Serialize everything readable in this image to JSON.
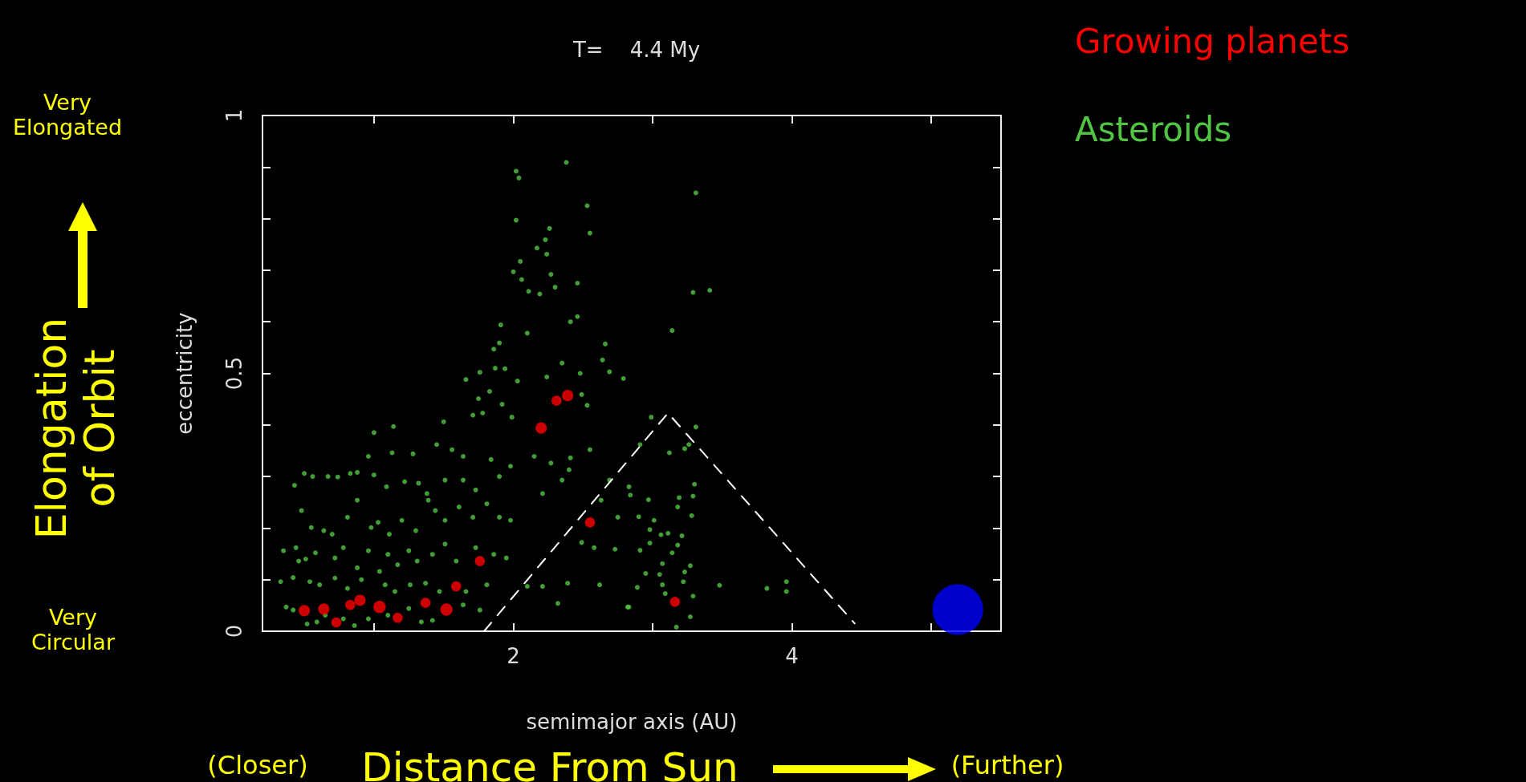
{
  "chart_data": {
    "type": "scatter",
    "title": "T=    4.4 My",
    "xlabel": "semimajor axis (AU)",
    "ylabel": "eccentricity",
    "xlim": [
      0.2,
      5.5
    ],
    "xticks": [
      {
        "value": 1,
        "label": null
      },
      2,
      {
        "value": 3,
        "label": null
      },
      4,
      {
        "value": 5,
        "label": null
      }
    ],
    "ylim": [
      0,
      1
    ],
    "yticks": [
      0,
      {
        "value": 0.1,
        "label": null
      },
      {
        "value": 0.2,
        "label": null
      },
      {
        "value": 0.3,
        "label": null
      },
      {
        "value": 0.4,
        "label": null
      },
      0.5,
      {
        "value": 0.6,
        "label": null
      },
      {
        "value": 0.7,
        "label": null
      },
      {
        "value": 0.8,
        "label": null
      },
      {
        "value": 0.9,
        "label": null
      },
      1
    ],
    "grid": false,
    "legend": "top right",
    "marker": "circle",
    "annotations": [
      "Very Elongated",
      "Very Circular",
      "Elongation of Orbit",
      "(Closer)",
      "Distance From Sun",
      "(Further)"
    ],
    "series": [
      {
        "type": "bubble",
        "name": "Growing planets",
        "color": "#ff0000",
        "x": [
          0.5,
          0.64,
          0.73,
          0.83,
          0.9,
          1.04,
          1.17,
          1.37,
          1.52,
          1.59,
          1.76,
          2.2,
          2.31,
          2.39,
          2.55,
          3.16
        ],
        "values": [
          0.04,
          0.043,
          0.017,
          0.051,
          0.06,
          0.047,
          0.026,
          0.055,
          0.042,
          0.087,
          0.136,
          0.394,
          0.447,
          0.457,
          0.211,
          0.057
        ],
        "sizes": [
          0.05,
          0.05,
          0.04,
          0.04,
          0.05,
          0.06,
          0.04,
          0.04,
          0.06,
          0.04,
          0.04,
          0.05,
          0.04,
          0.05,
          0.04,
          0.04
        ]
      },
      {
        "name": "Asteroids",
        "color": "#52c443",
        "x": [
          2.02,
          2.04,
          2.38,
          2.53,
          2.55,
          2.02,
          2.26,
          2.23,
          2.17,
          2.24,
          2.0,
          2.05,
          2.06,
          2.11,
          2.19,
          2.27,
          2.3,
          2.46,
          2.41,
          2.46,
          1.91,
          2.1,
          1.9,
          1.86,
          1.87,
          1.94,
          1.76,
          1.66,
          1.83,
          1.75,
          1.92,
          2.03,
          2.24,
          2.35,
          2.48,
          2.64,
          2.69,
          2.79,
          2.66,
          2.49,
          2.53,
          1.71,
          1.78,
          1.99,
          1.5,
          1.14,
          1.0,
          0.96,
          1.13,
          1.28,
          1.45,
          1.56,
          1.64,
          1.84,
          1.98,
          2.15,
          2.27,
          2.41,
          2.55,
          2.69,
          2.83,
          2.21,
          2.35,
          2.4,
          0.43,
          0.5,
          0.56,
          0.67,
          0.74,
          0.83,
          0.88,
          1.0,
          1.09,
          1.22,
          1.32,
          1.38,
          1.51,
          1.64,
          1.73,
          1.9,
          2.63,
          2.75,
          0.48,
          0.55,
          0.64,
          0.7,
          0.81,
          0.88,
          0.98,
          1.03,
          1.11,
          1.2,
          1.3,
          1.39,
          1.44,
          1.51,
          1.61,
          1.71,
          1.81,
          1.9,
          1.98,
          2.49,
          2.58,
          0.35,
          0.44,
          0.46,
          0.51,
          0.58,
          0.72,
          0.78,
          0.88,
          0.96,
          1.04,
          1.1,
          1.17,
          1.25,
          1.31,
          1.42,
          1.51,
          1.59,
          1.73,
          1.86,
          1.95,
          2.1,
          2.21,
          2.32,
          2.39,
          2.62,
          2.73,
          0.33,
          0.42,
          0.54,
          0.61,
          0.72,
          0.81,
          0.91,
          1.08,
          1.15,
          1.26,
          1.37,
          1.47,
          1.66,
          1.81,
          0.37,
          0.42,
          0.52,
          0.59,
          0.65,
          0.78,
          0.86,
          0.96,
          1.1,
          1.25,
          1.34,
          1.42,
          1.64,
          1.76,
          2.83,
          3.31,
          3.29,
          3.41,
          3.14,
          2.99,
          3.31,
          2.91,
          3.12,
          3.26,
          3.23,
          3.3,
          2.84,
          2.97,
          3.19,
          3.29,
          3.18,
          3.28,
          2.9,
          3.01,
          2.98,
          3.06,
          3.11,
          3.21,
          2.98,
          3.18,
          2.91,
          3.14,
          3.07,
          3.27,
          2.95,
          3.05,
          3.23,
          2.89,
          3.07,
          3.22,
          3.48,
          3.82,
          3.96,
          3.96,
          3.09,
          3.29,
          3.27,
          3.17,
          2.82
        ],
        "values": [
          0.892,
          0.879,
          0.909,
          0.825,
          0.772,
          0.797,
          0.781,
          0.759,
          0.743,
          0.731,
          0.697,
          0.717,
          0.682,
          0.659,
          0.654,
          0.692,
          0.667,
          0.675,
          0.6,
          0.61,
          0.594,
          0.578,
          0.559,
          0.547,
          0.51,
          0.509,
          0.502,
          0.488,
          0.465,
          0.451,
          0.44,
          0.485,
          0.493,
          0.52,
          0.5,
          0.526,
          0.503,
          0.49,
          0.557,
          0.459,
          0.438,
          0.419,
          0.423,
          0.415,
          0.406,
          0.397,
          0.385,
          0.339,
          0.346,
          0.344,
          0.362,
          0.352,
          0.339,
          0.333,
          0.32,
          0.339,
          0.326,
          0.336,
          0.352,
          0.293,
          0.28,
          0.267,
          0.293,
          0.313,
          0.283,
          0.306,
          0.3,
          0.3,
          0.299,
          0.306,
          0.308,
          0.303,
          0.28,
          0.29,
          0.287,
          0.267,
          0.293,
          0.293,
          0.274,
          0.3,
          0.254,
          0.221,
          0.234,
          0.201,
          0.195,
          0.188,
          0.221,
          0.254,
          0.201,
          0.211,
          0.188,
          0.215,
          0.195,
          0.254,
          0.234,
          0.215,
          0.241,
          0.221,
          0.247,
          0.221,
          0.215,
          0.172,
          0.162,
          0.156,
          0.162,
          0.136,
          0.14,
          0.152,
          0.142,
          0.162,
          0.123,
          0.156,
          0.116,
          0.149,
          0.129,
          0.156,
          0.136,
          0.149,
          0.169,
          0.136,
          0.162,
          0.149,
          0.142,
          0.087,
          0.087,
          0.054,
          0.093,
          0.09,
          0.159,
          0.096,
          0.104,
          0.096,
          0.09,
          0.103,
          0.083,
          0.1,
          0.09,
          0.077,
          0.09,
          0.093,
          0.077,
          0.077,
          0.09,
          0.047,
          0.041,
          0.014,
          0.018,
          0.031,
          0.024,
          0.011,
          0.024,
          0.031,
          0.044,
          0.018,
          0.021,
          0.051,
          0.041,
          0.047,
          0.85,
          0.657,
          0.661,
          0.583,
          0.415,
          0.396,
          0.362,
          0.346,
          0.362,
          0.354,
          0.285,
          0.264,
          0.255,
          0.259,
          0.262,
          0.241,
          0.224,
          0.222,
          0.215,
          0.197,
          0.187,
          0.19,
          0.185,
          0.171,
          0.167,
          0.157,
          0.152,
          0.131,
          0.127,
          0.112,
          0.11,
          0.115,
          0.085,
          0.09,
          0.096,
          0.089,
          0.083,
          0.096,
          0.077,
          0.073,
          0.068,
          0.028,
          0.008,
          0.047
        ]
      },
      {
        "type": "bubble",
        "color": "#0000ff",
        "x": [
          5.19
        ],
        "values": [
          0.042
        ],
        "sizes": [
          1
        ]
      },
      {
        "type": "line",
        "color": "#ffffff",
        "line_style": "dashed",
        "marker": "none",
        "x": [
          1.79,
          3.11,
          4.45
        ],
        "values": [
          0,
          0.423,
          0.015
        ]
      }
    ]
  }
}
